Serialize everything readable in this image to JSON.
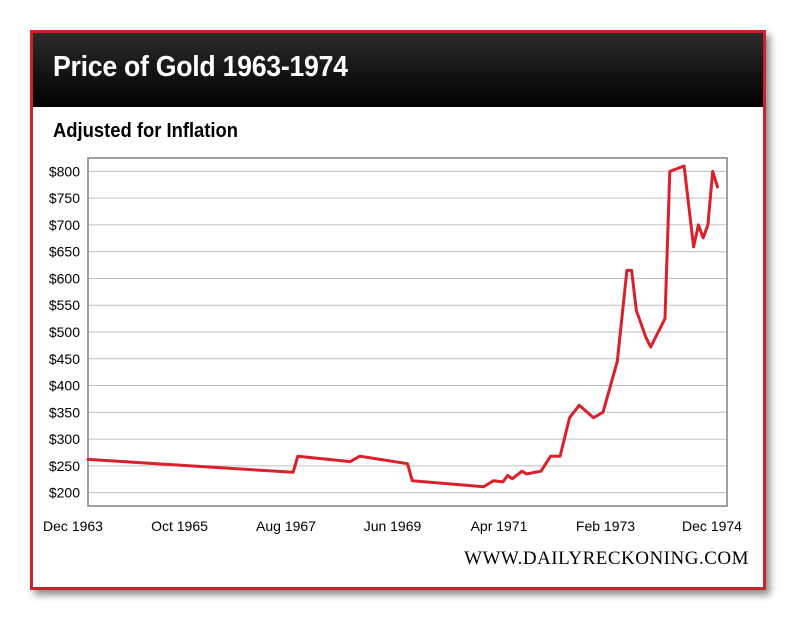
{
  "header": {
    "title": "Price of Gold 1963-1974"
  },
  "subtitle": "Adjusted for Inflation",
  "credit": "WWW.DAILYRECKONING.COM",
  "colors": {
    "line": "#d9202b",
    "frame": "#d0202a",
    "title_bar": "#000000",
    "grid": "#bfbfbf",
    "plot_border": "#a0a0a0"
  },
  "chart_data": {
    "type": "line",
    "title": "Price of Gold 1963-1974",
    "subtitle": "Adjusted for Inflation",
    "xlabel": "",
    "ylabel": "",
    "xlim": [
      "1963-12",
      "1975-02"
    ],
    "ylim": [
      175,
      825
    ],
    "grid": true,
    "y_ticks": [
      "$200",
      "$250",
      "$300",
      "$350",
      "$400",
      "$450",
      "$500",
      "$550",
      "$600",
      "$650",
      "$700",
      "$750",
      "$800"
    ],
    "x_ticks": [
      "Dec 1963",
      "Oct 1965",
      "Aug 1967",
      "Jun 1969",
      "Apr 1971",
      "Feb 1973",
      "Dec 1974"
    ],
    "series": [
      {
        "name": "",
        "x": [
          "1963-12",
          "1967-07",
          "1967-08",
          "1968-07",
          "1968-09",
          "1969-07",
          "1969-08",
          "1970-11",
          "1971-01",
          "1971-03",
          "1971-04",
          "1971-05",
          "1971-07",
          "1971-08",
          "1971-11",
          "1972-01",
          "1972-03",
          "1972-05",
          "1972-07",
          "1972-10",
          "1972-12",
          "1973-03",
          "1973-05",
          "1973-06",
          "1973-07",
          "1973-09",
          "1973-10",
          "1974-01",
          "1974-02",
          "1974-05",
          "1974-07",
          "1974-08",
          "1974-09",
          "1974-10",
          "1974-11",
          "1974-12"
        ],
        "values": [
          262,
          238,
          268,
          258,
          268,
          254,
          222,
          211,
          222,
          220,
          232,
          226,
          240,
          235,
          240,
          268,
          268,
          340,
          363,
          340,
          350,
          445,
          615,
          615,
          540,
          490,
          472,
          525,
          800,
          810,
          659,
          700,
          676,
          700,
          800,
          771
        ]
      }
    ]
  }
}
